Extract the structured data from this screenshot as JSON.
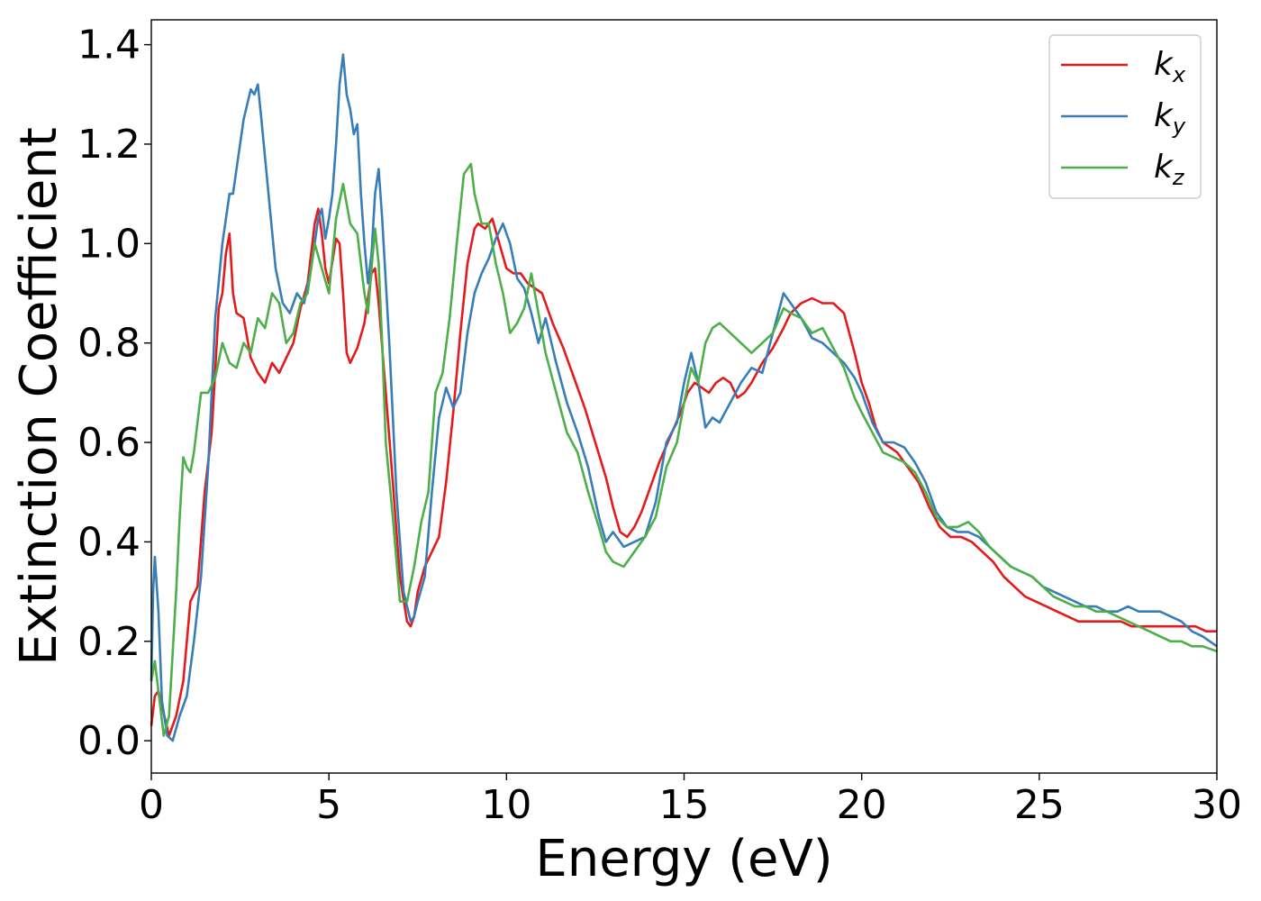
{
  "chart_data": {
    "type": "line",
    "xlabel": "Energy (eV)",
    "ylabel": "Extinction Coefficient",
    "xlim": [
      0,
      30
    ],
    "ylim": [
      -0.065,
      1.45
    ],
    "xticks": [
      0,
      5,
      10,
      15,
      20,
      25,
      30
    ],
    "xtick_labels": [
      "0",
      "5",
      "10",
      "15",
      "20",
      "25",
      "30"
    ],
    "yticks": [
      0.0,
      0.2,
      0.4,
      0.6,
      0.8,
      1.0,
      1.2,
      1.4
    ],
    "ytick_labels": [
      "0.0",
      "0.2",
      "0.4",
      "0.6",
      "0.8",
      "1.0",
      "1.2",
      "1.4"
    ],
    "grid": false,
    "legend": "top-right",
    "series": [
      {
        "name": "k_x",
        "label_base": "k",
        "label_sub": "x",
        "color": "#e41a1c",
        "x": [
          0,
          0.1,
          0.2,
          0.3,
          0.5,
          0.7,
          0.9,
          1.1,
          1.3,
          1.5,
          1.7,
          1.9,
          2.0,
          2.1,
          2.2,
          2.3,
          2.4,
          2.6,
          2.8,
          3.0,
          3.2,
          3.4,
          3.6,
          3.8,
          4.0,
          4.2,
          4.4,
          4.6,
          4.7,
          4.8,
          4.9,
          5.0,
          5.2,
          5.3,
          5.4,
          5.5,
          5.6,
          5.8,
          6.0,
          6.2,
          6.3,
          6.4,
          6.6,
          6.8,
          7.0,
          7.2,
          7.3,
          7.4,
          7.5,
          7.7,
          7.9,
          8.1,
          8.3,
          8.5,
          8.7,
          8.9,
          9.1,
          9.2,
          9.4,
          9.6,
          9.8,
          10.0,
          10.2,
          10.4,
          10.6,
          10.8,
          11.0,
          11.3,
          11.6,
          11.9,
          12.2,
          12.5,
          12.8,
          13.0,
          13.2,
          13.4,
          13.6,
          13.8,
          14.0,
          14.3,
          14.6,
          14.9,
          15.1,
          15.3,
          15.5,
          15.7,
          15.9,
          16.1,
          16.3,
          16.5,
          16.7,
          16.9,
          17.2,
          17.5,
          17.8,
          18.0,
          18.3,
          18.6,
          18.9,
          19.2,
          19.5,
          19.8,
          20.0,
          20.2,
          20.4,
          20.6,
          20.8,
          21.0,
          21.3,
          21.6,
          21.9,
          22.2,
          22.5,
          22.8,
          23.1,
          23.4,
          23.7,
          24.0,
          24.3,
          24.6,
          24.9,
          25.2,
          25.5,
          25.8,
          26.1,
          26.4,
          26.7,
          27.0,
          27.3,
          27.6,
          27.9,
          28.2,
          28.5,
          28.8,
          29.1,
          29.4,
          29.7,
          30.0
        ],
        "y": [
          0.03,
          0.09,
          0.1,
          0.07,
          0.01,
          0.05,
          0.12,
          0.28,
          0.31,
          0.5,
          0.62,
          0.87,
          0.9,
          0.98,
          1.02,
          0.9,
          0.86,
          0.85,
          0.77,
          0.74,
          0.72,
          0.76,
          0.74,
          0.77,
          0.8,
          0.87,
          0.92,
          1.04,
          1.07,
          1.02,
          0.95,
          0.92,
          1.01,
          1.0,
          0.9,
          0.78,
          0.76,
          0.79,
          0.84,
          0.94,
          0.95,
          0.88,
          0.7,
          0.52,
          0.33,
          0.24,
          0.23,
          0.25,
          0.3,
          0.35,
          0.38,
          0.41,
          0.52,
          0.66,
          0.82,
          0.96,
          1.03,
          1.04,
          1.03,
          1.05,
          1.0,
          0.95,
          0.94,
          0.94,
          0.92,
          0.91,
          0.9,
          0.84,
          0.79,
          0.73,
          0.67,
          0.6,
          0.53,
          0.47,
          0.42,
          0.41,
          0.43,
          0.46,
          0.5,
          0.56,
          0.61,
          0.66,
          0.7,
          0.72,
          0.71,
          0.7,
          0.72,
          0.73,
          0.72,
          0.69,
          0.7,
          0.72,
          0.76,
          0.79,
          0.83,
          0.86,
          0.88,
          0.89,
          0.88,
          0.88,
          0.86,
          0.78,
          0.72,
          0.68,
          0.63,
          0.6,
          0.59,
          0.58,
          0.55,
          0.52,
          0.47,
          0.43,
          0.41,
          0.41,
          0.4,
          0.38,
          0.36,
          0.33,
          0.31,
          0.29,
          0.28,
          0.27,
          0.26,
          0.25,
          0.24,
          0.24,
          0.24,
          0.24,
          0.24,
          0.23,
          0.23,
          0.23,
          0.23,
          0.23,
          0.23,
          0.23,
          0.22,
          0.22
        ]
      },
      {
        "name": "k_y",
        "label_base": "k",
        "label_sub": "y",
        "color": "#377eb8",
        "x": [
          0,
          0.05,
          0.1,
          0.2,
          0.3,
          0.45,
          0.6,
          0.8,
          1.0,
          1.2,
          1.4,
          1.6,
          1.8,
          2.0,
          2.2,
          2.3,
          2.4,
          2.6,
          2.8,
          2.9,
          3.0,
          3.1,
          3.3,
          3.5,
          3.7,
          3.9,
          4.1,
          4.3,
          4.5,
          4.7,
          4.8,
          4.9,
          5.0,
          5.1,
          5.2,
          5.3,
          5.4,
          5.5,
          5.6,
          5.7,
          5.8,
          5.9,
          6.0,
          6.1,
          6.2,
          6.3,
          6.4,
          6.5,
          6.7,
          6.9,
          7.1,
          7.3,
          7.4,
          7.5,
          7.7,
          7.9,
          8.1,
          8.3,
          8.5,
          8.7,
          8.9,
          9.1,
          9.3,
          9.5,
          9.7,
          9.9,
          10.1,
          10.3,
          10.5,
          10.7,
          10.9,
          11.1,
          11.4,
          11.7,
          12.0,
          12.3,
          12.6,
          12.8,
          13.0,
          13.3,
          13.6,
          13.9,
          14.2,
          14.5,
          14.8,
          15.0,
          15.2,
          15.4,
          15.6,
          15.8,
          16.0,
          16.3,
          16.6,
          16.9,
          17.2,
          17.5,
          17.8,
          18.0,
          18.3,
          18.6,
          18.9,
          19.2,
          19.5,
          19.8,
          20.0,
          20.3,
          20.6,
          20.9,
          21.2,
          21.5,
          21.8,
          22.1,
          22.4,
          22.7,
          23.0,
          23.3,
          23.6,
          23.9,
          24.2,
          24.5,
          24.8,
          25.1,
          25.4,
          25.7,
          26.0,
          26.3,
          26.6,
          26.9,
          27.2,
          27.5,
          27.8,
          28.1,
          28.4,
          28.7,
          29.0,
          29.3,
          29.6,
          30.0
        ],
        "y": [
          0.12,
          0.3,
          0.37,
          0.26,
          0.08,
          0.01,
          0.0,
          0.05,
          0.09,
          0.2,
          0.33,
          0.55,
          0.85,
          1.0,
          1.1,
          1.1,
          1.15,
          1.25,
          1.31,
          1.3,
          1.32,
          1.25,
          1.1,
          0.95,
          0.88,
          0.86,
          0.9,
          0.88,
          0.95,
          1.05,
          1.07,
          1.01,
          1.05,
          1.1,
          1.2,
          1.32,
          1.38,
          1.3,
          1.27,
          1.22,
          1.24,
          1.1,
          1.0,
          0.92,
          0.98,
          1.1,
          1.15,
          1.05,
          0.8,
          0.5,
          0.3,
          0.24,
          0.25,
          0.28,
          0.33,
          0.5,
          0.65,
          0.71,
          0.67,
          0.7,
          0.82,
          0.9,
          0.94,
          0.97,
          1.01,
          1.04,
          1.0,
          0.93,
          0.91,
          0.86,
          0.8,
          0.85,
          0.76,
          0.68,
          0.62,
          0.55,
          0.45,
          0.4,
          0.42,
          0.39,
          0.4,
          0.41,
          0.48,
          0.6,
          0.64,
          0.72,
          0.78,
          0.72,
          0.63,
          0.65,
          0.64,
          0.68,
          0.72,
          0.75,
          0.74,
          0.82,
          0.9,
          0.88,
          0.85,
          0.81,
          0.8,
          0.78,
          0.76,
          0.73,
          0.7,
          0.64,
          0.6,
          0.6,
          0.59,
          0.56,
          0.52,
          0.46,
          0.43,
          0.42,
          0.42,
          0.41,
          0.39,
          0.37,
          0.35,
          0.34,
          0.33,
          0.31,
          0.3,
          0.29,
          0.28,
          0.27,
          0.27,
          0.26,
          0.26,
          0.27,
          0.26,
          0.26,
          0.26,
          0.25,
          0.24,
          0.22,
          0.21,
          0.19
        ]
      },
      {
        "name": "k_z",
        "label_base": "k",
        "label_sub": "z",
        "color": "#4daf4a",
        "x": [
          0,
          0.1,
          0.2,
          0.35,
          0.5,
          0.7,
          0.8,
          0.9,
          1.0,
          1.1,
          1.2,
          1.4,
          1.6,
          1.8,
          2.0,
          2.2,
          2.4,
          2.6,
          2.8,
          3.0,
          3.2,
          3.4,
          3.6,
          3.8,
          4.0,
          4.2,
          4.4,
          4.6,
          4.8,
          5.0,
          5.2,
          5.4,
          5.6,
          5.8,
          6.0,
          6.1,
          6.2,
          6.3,
          6.4,
          6.5,
          6.6,
          6.8,
          7.0,
          7.2,
          7.4,
          7.6,
          7.8,
          8.0,
          8.2,
          8.4,
          8.6,
          8.8,
          9.0,
          9.1,
          9.3,
          9.5,
          9.7,
          9.9,
          10.1,
          10.3,
          10.5,
          10.7,
          10.9,
          11.1,
          11.4,
          11.7,
          12.0,
          12.3,
          12.6,
          12.8,
          13.0,
          13.3,
          13.6,
          13.9,
          14.2,
          14.5,
          14.8,
          15.0,
          15.2,
          15.4,
          15.6,
          15.8,
          16.0,
          16.3,
          16.6,
          16.9,
          17.2,
          17.5,
          17.8,
          18.0,
          18.3,
          18.6,
          18.9,
          19.2,
          19.5,
          19.8,
          20.0,
          20.3,
          20.6,
          20.9,
          21.2,
          21.5,
          21.8,
          22.1,
          22.4,
          22.7,
          23.0,
          23.3,
          23.6,
          23.9,
          24.2,
          24.5,
          24.8,
          25.1,
          25.4,
          25.7,
          26.0,
          26.3,
          26.6,
          26.9,
          27.2,
          27.5,
          27.8,
          28.1,
          28.4,
          28.7,
          29.0,
          29.3,
          29.6,
          30.0
        ],
        "y": [
          0.12,
          0.16,
          0.1,
          0.01,
          0.05,
          0.3,
          0.45,
          0.57,
          0.55,
          0.54,
          0.58,
          0.7,
          0.7,
          0.73,
          0.8,
          0.76,
          0.75,
          0.8,
          0.78,
          0.85,
          0.83,
          0.9,
          0.88,
          0.8,
          0.82,
          0.88,
          0.9,
          1.0,
          0.95,
          0.9,
          1.05,
          1.12,
          1.04,
          1.02,
          0.9,
          0.86,
          0.95,
          1.03,
          0.96,
          0.8,
          0.6,
          0.45,
          0.28,
          0.28,
          0.35,
          0.44,
          0.5,
          0.7,
          0.74,
          0.85,
          1.0,
          1.14,
          1.16,
          1.1,
          1.04,
          1.04,
          0.96,
          0.9,
          0.82,
          0.84,
          0.87,
          0.94,
          0.86,
          0.78,
          0.7,
          0.62,
          0.58,
          0.5,
          0.43,
          0.38,
          0.36,
          0.35,
          0.38,
          0.41,
          0.45,
          0.55,
          0.6,
          0.68,
          0.75,
          0.72,
          0.8,
          0.83,
          0.84,
          0.82,
          0.8,
          0.78,
          0.8,
          0.82,
          0.87,
          0.86,
          0.85,
          0.82,
          0.83,
          0.79,
          0.75,
          0.69,
          0.66,
          0.62,
          0.58,
          0.57,
          0.56,
          0.54,
          0.5,
          0.45,
          0.43,
          0.43,
          0.44,
          0.42,
          0.39,
          0.37,
          0.35,
          0.34,
          0.33,
          0.31,
          0.29,
          0.28,
          0.27,
          0.27,
          0.26,
          0.26,
          0.25,
          0.24,
          0.23,
          0.22,
          0.21,
          0.2,
          0.2,
          0.19,
          0.19,
          0.18
        ]
      }
    ]
  }
}
